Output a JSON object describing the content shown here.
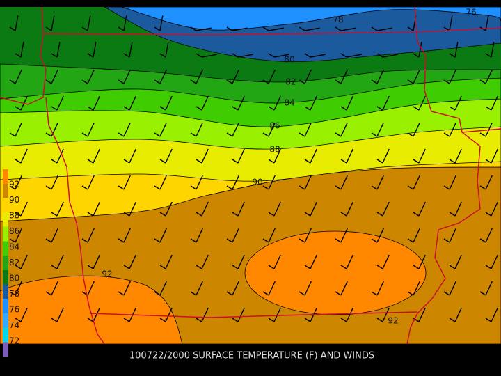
{
  "title": "100722/2000 SURFACE TEMPERATURE (F) AND WINDS",
  "contour_labels": [
    76,
    78,
    80,
    82,
    84,
    86,
    88,
    90,
    92,
    92
  ],
  "legend": {
    "labels": [
      92,
      90,
      88,
      86,
      84,
      82,
      80,
      78,
      76,
      74,
      72
    ]
  }
}
